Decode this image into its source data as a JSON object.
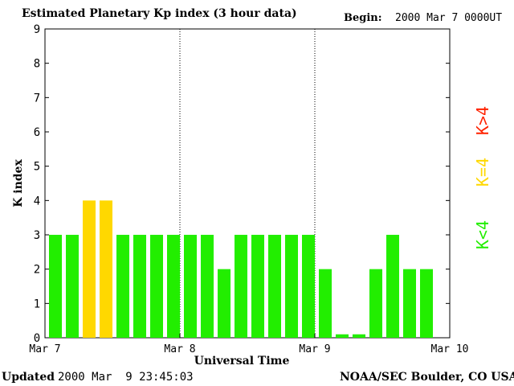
{
  "header": {
    "title": "Estimated Planetary Kp index (3 hour data)",
    "begin_label": "Begin:",
    "begin_value": "2000 Mar 7 0000UT"
  },
  "footer": {
    "updated_label": "Updated",
    "updated_value": "2000 Mar  9 23:45:03",
    "credit": "NOAA/SEC Boulder, CO USA"
  },
  "legend": {
    "items": [
      {
        "label": "K<4",
        "color": "#22ee00"
      },
      {
        "label": "K=4",
        "color": "#ffd800"
      },
      {
        "label": "K>4",
        "color": "#ff2200"
      }
    ]
  },
  "colors": {
    "low": "#22ee00",
    "equal": "#ffd800",
    "high": "#ff2200"
  },
  "chart_data": {
    "type": "bar",
    "title": "Estimated Planetary Kp index (3 hour data)",
    "xlabel": "Universal Time",
    "ylabel": "K index",
    "ylim": [
      0,
      9
    ],
    "yticks": [
      "0",
      "1",
      "2",
      "3",
      "4",
      "5",
      "6",
      "7",
      "8",
      "9"
    ],
    "xticks": [
      "Mar 7",
      "Mar 8",
      "Mar 9",
      "Mar 10"
    ],
    "grid": "vertical dotted lines at day boundaries",
    "legend_placement": "right",
    "values": [
      3,
      3,
      4,
      4,
      3,
      3,
      3,
      3,
      3,
      3,
      2,
      3,
      3,
      3,
      3,
      3,
      2,
      0.1,
      0.1,
      2,
      3,
      2,
      2
    ]
  }
}
